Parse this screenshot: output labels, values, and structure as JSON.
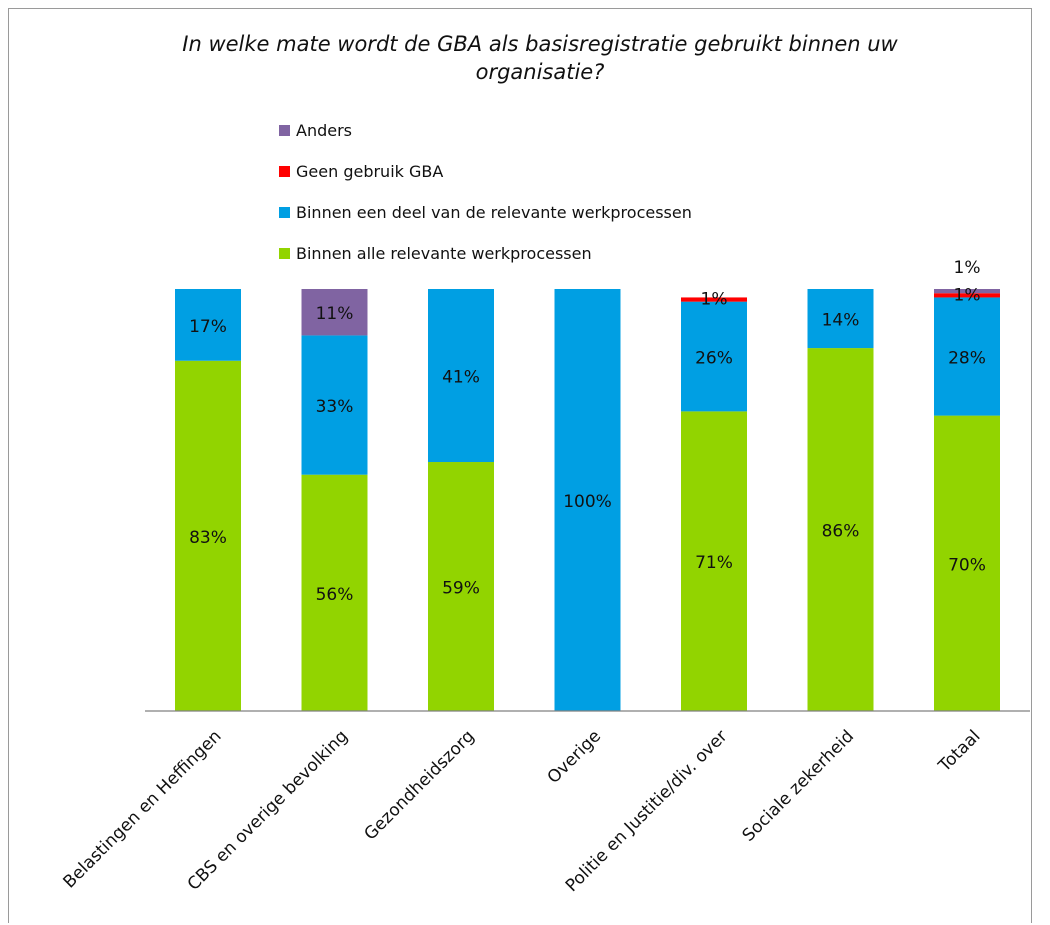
{
  "chart_data": {
    "type": "bar",
    "stacked": true,
    "title": "In welke mate wordt de GBA als basisregistratie gebruikt binnen uw organisatie?",
    "categories": [
      "Belastingen en Heffingen",
      "CBS en overige bevolking",
      "Gezondheidszorg",
      "Overige",
      "Politie en Justitie/div. over",
      "Sociale zekerheid",
      "Totaal"
    ],
    "series": [
      {
        "name": "Binnen alle relevante werkprocessen",
        "color": "#92d400",
        "values": [
          83,
          56,
          59,
          0,
          71,
          86,
          70
        ]
      },
      {
        "name": "Binnen een deel van de relevante werkprocessen",
        "color": "#009fe3",
        "values": [
          17,
          33,
          41,
          100,
          26,
          14,
          28
        ]
      },
      {
        "name": "Geen gebruik GBA",
        "color": "#ff0000",
        "values": [
          0,
          0,
          0,
          0,
          1,
          0,
          1
        ]
      },
      {
        "name": "Anders",
        "color": "#8064a2",
        "values": [
          0,
          11,
          0,
          0,
          0,
          0,
          1
        ]
      }
    ],
    "data_labels": [
      [
        "83%",
        "17%",
        "",
        ""
      ],
      [
        "56%",
        "33%",
        "",
        "11%"
      ],
      [
        "59%",
        "41%",
        "",
        ""
      ],
      [
        "",
        "100%",
        "",
        ""
      ],
      [
        "71%",
        "26%",
        "1%",
        ""
      ],
      [
        "86%",
        "14%",
        "",
        ""
      ],
      [
        "70%",
        "28%",
        "1%",
        "1%"
      ]
    ],
    "legend_order": [
      "Anders",
      "Geen gebruik GBA",
      "Binnen een deel van de relevante werkprocessen",
      "Binnen alle relevante werkprocessen"
    ],
    "legend_position": "top",
    "ylim": [
      0,
      100
    ],
    "grid": false
  }
}
